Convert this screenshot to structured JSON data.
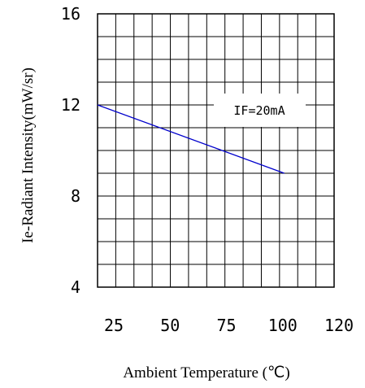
{
  "chart_data": {
    "type": "line",
    "title": "",
    "xlabel": "Ambient Temperature (℃)",
    "ylabel": "Ie-Radiant Intensity(mW/sr)",
    "xlim": [
      25,
      120
    ],
    "ylim": [
      4,
      16
    ],
    "x_ticks": [
      "25",
      "50",
      "75",
      "100",
      "120"
    ],
    "y_ticks": [
      "16",
      "12",
      "8",
      "4"
    ],
    "grid": true,
    "series": [
      {
        "x": [
          25,
          100
        ],
        "y": [
          12.0,
          9.0
        ]
      }
    ],
    "annotation": "IF=20mA",
    "colors": {
      "line": "#0000cc",
      "grid": "#000000",
      "background": "#ffffff"
    }
  }
}
